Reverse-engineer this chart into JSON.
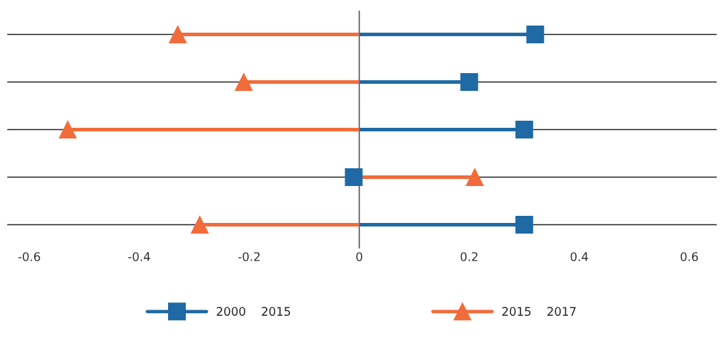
{
  "chart_data": {
    "type": "lollipop",
    "orientation": "horizontal",
    "categories": [
      null,
      null,
      null,
      null,
      null
    ],
    "series": [
      {
        "name": "2000    2015",
        "color": "#1f6aa5",
        "marker": "square",
        "values": [
          0.32,
          0.2,
          0.3,
          -0.01,
          0.3
        ]
      },
      {
        "name": "2015    2017",
        "color": "#f26b3a",
        "marker": "triangle",
        "values": [
          -0.33,
          -0.21,
          -0.53,
          0.21,
          -0.29
        ]
      }
    ],
    "xlim": [
      -0.64,
      0.65
    ],
    "xticks": [
      -0.6,
      -0.4,
      -0.2,
      0,
      0.2,
      0.4,
      0.6
    ],
    "ref_lines": [
      {
        "axis": "x",
        "value": 0,
        "color": "#555555"
      }
    ],
    "grid": "y",
    "legend": "bottom"
  }
}
